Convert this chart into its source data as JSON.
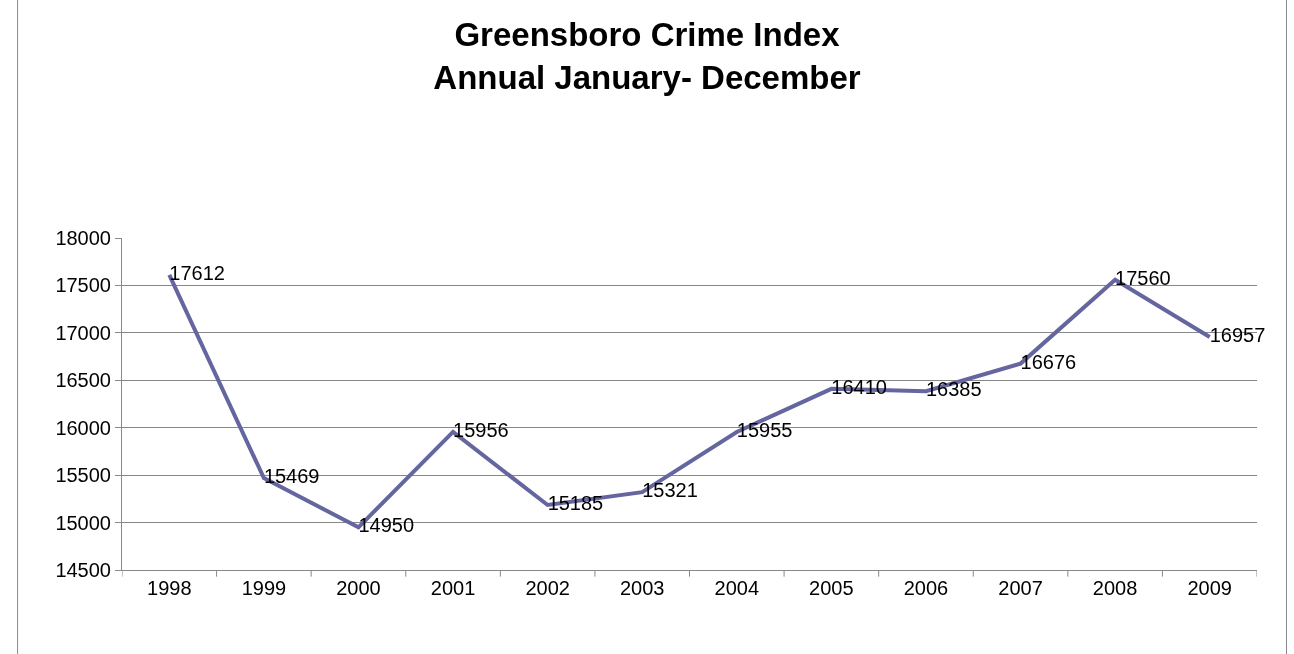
{
  "chart_data": {
    "type": "line",
    "title": "Greensboro Crime Index\nAnnual January- December",
    "categories": [
      "1998",
      "1999",
      "2000",
      "2001",
      "2002",
      "2003",
      "2004",
      "2005",
      "2006",
      "2007",
      "2008",
      "2009"
    ],
    "series": [
      {
        "color": "#65659f",
        "values": [
          17612,
          15469,
          14950,
          15956,
          15185,
          15321,
          15955,
          16410,
          16385,
          16676,
          17560,
          16957
        ]
      }
    ],
    "ylim": [
      14500,
      18000
    ],
    "yticks": [
      14500,
      15000,
      15500,
      16000,
      16500,
      17000,
      17500,
      18000
    ],
    "grid": "y",
    "legend": false,
    "marker": "none",
    "line_style": "solid",
    "data_labels": true
  }
}
